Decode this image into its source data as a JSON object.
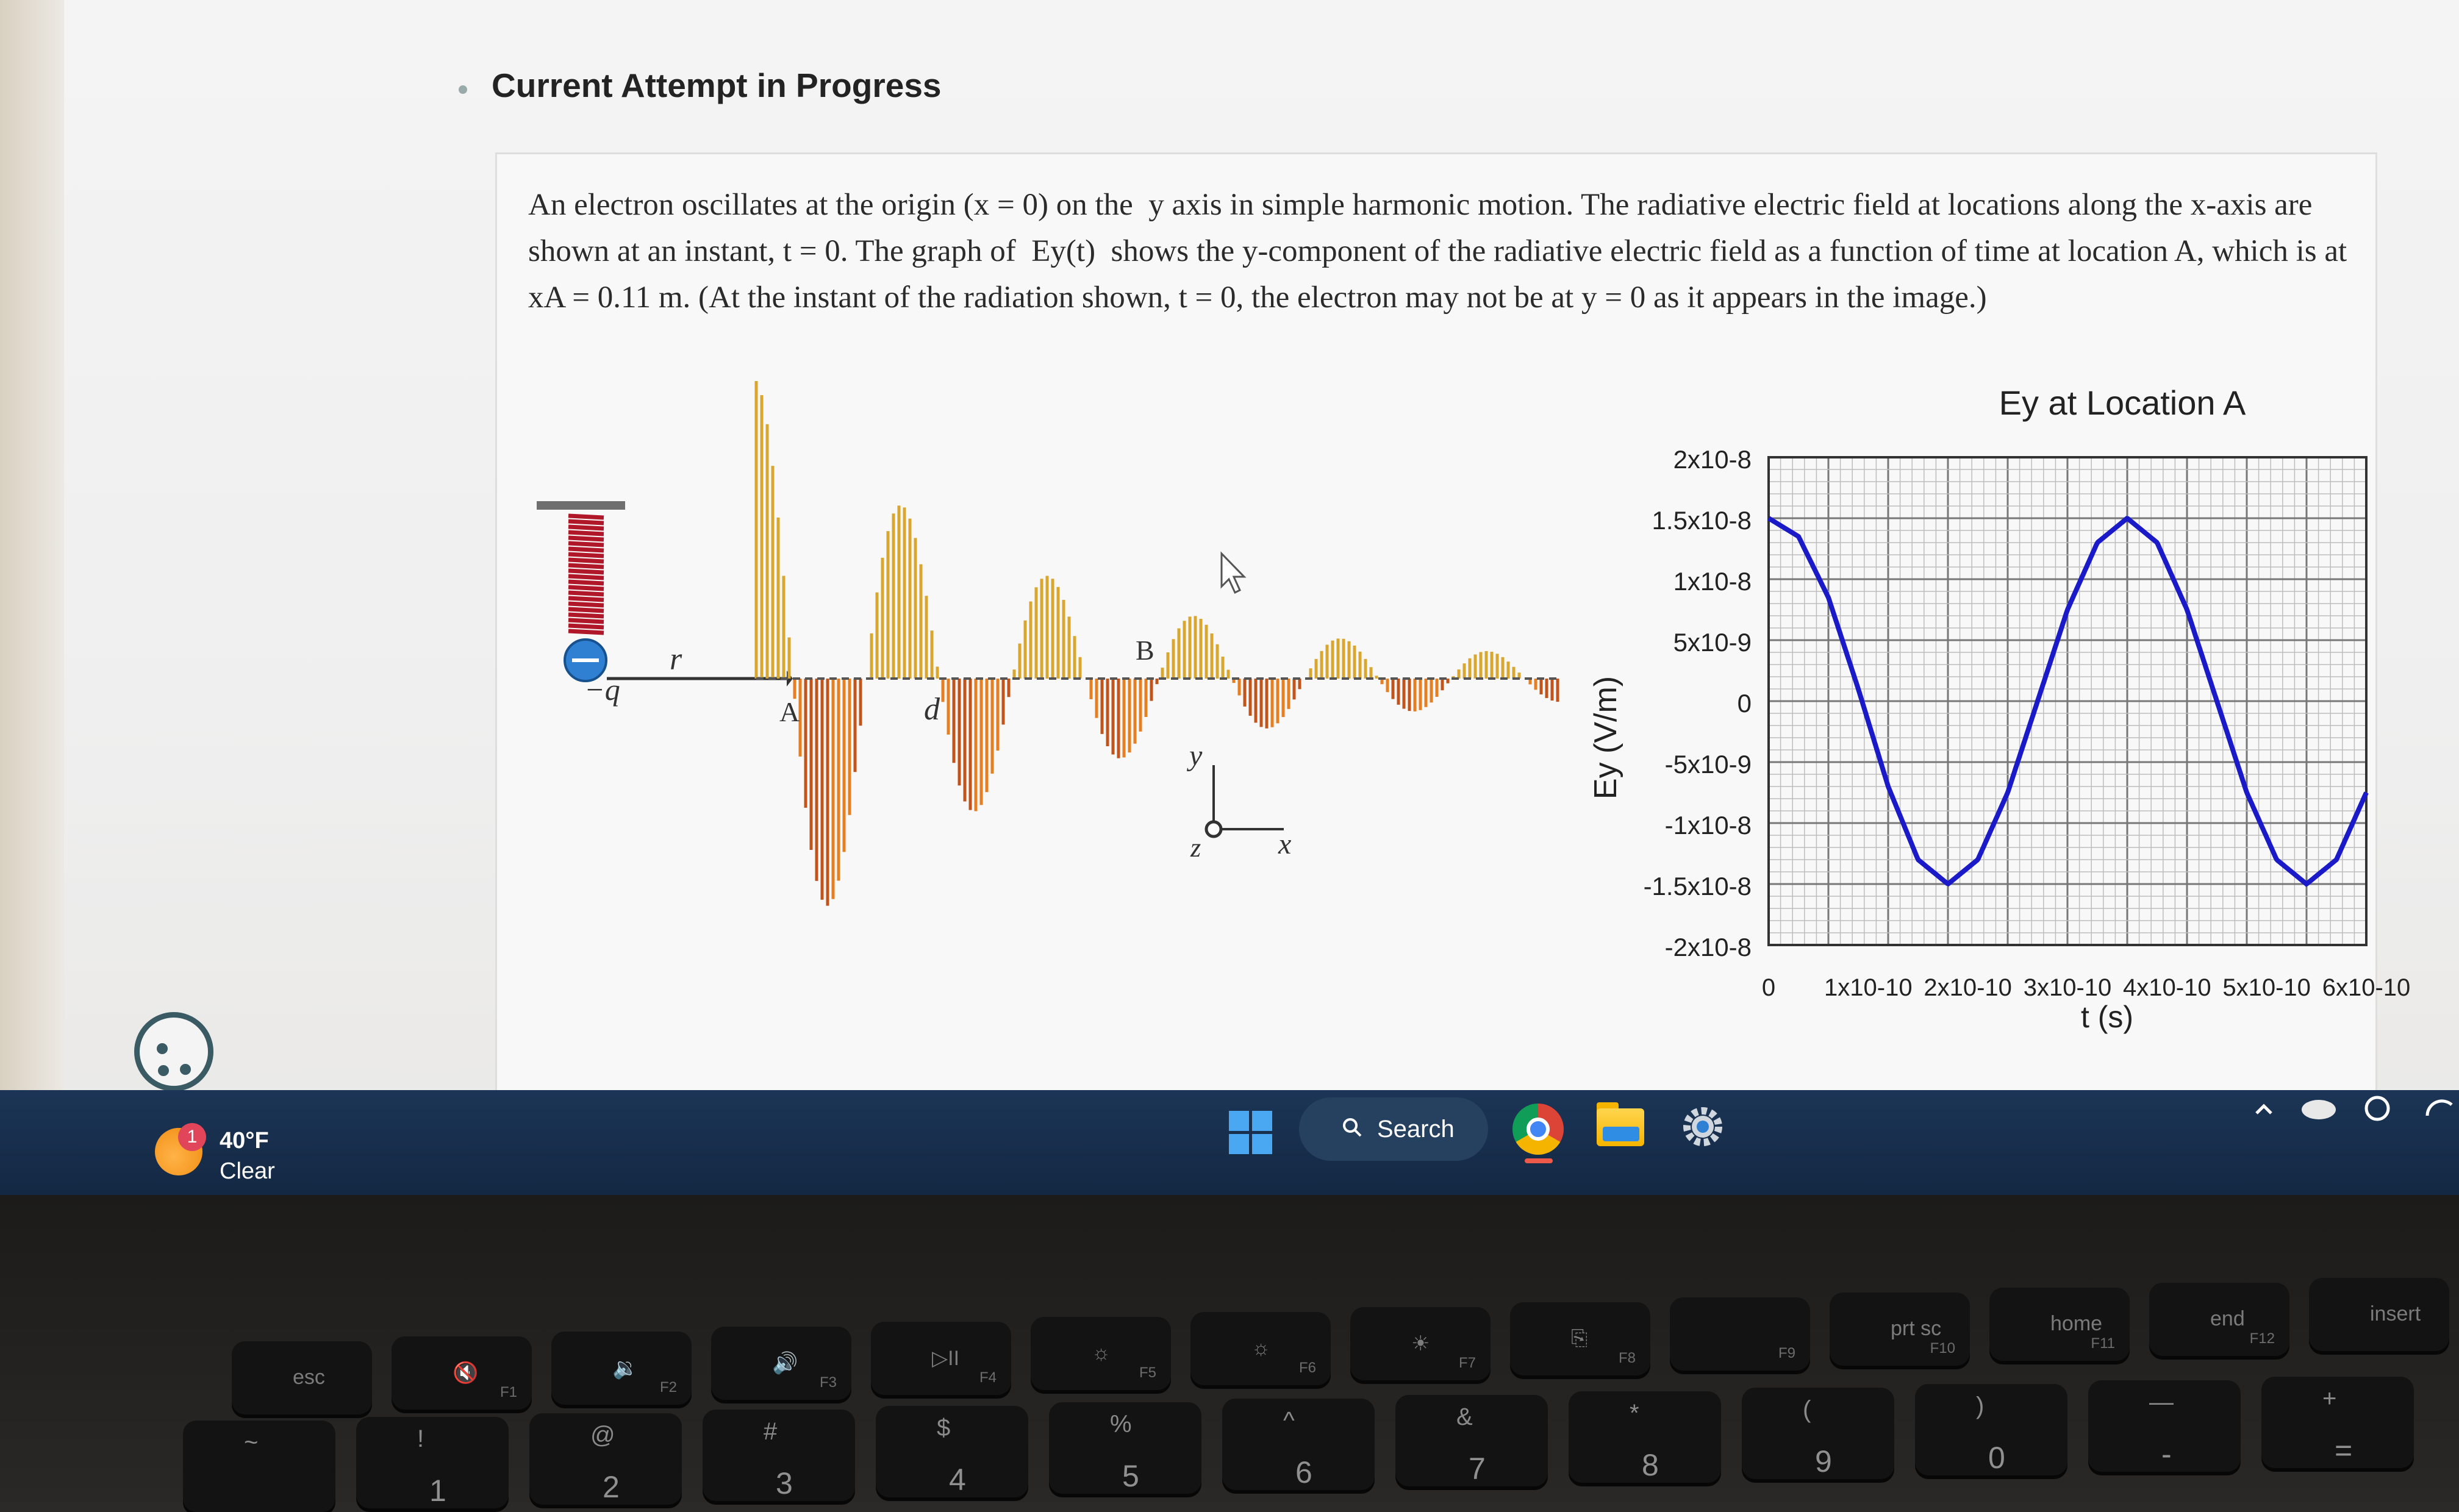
{
  "page": {
    "heading": "Current Attempt in Progress"
  },
  "question": {
    "text": "An electron oscillates at the origin (x = 0) on the  y axis in simple harmonic motion. The radiative electric field at locations along the x-axis are shown at an instant, t = 0. The graph of  Ey(t)  shows the y-component of the radiative electric field as a function of time at location A, which is at xA = 0.11 m. (At the instant of the radiation shown, t = 0, the electron may not be at y = 0 as it appears in the image.)"
  },
  "diagram": {
    "charge_label": "−q",
    "r_label": "r⃗",
    "point_a": "A",
    "point_b": "B",
    "distance_label": "d",
    "axis_y": "y",
    "axis_x": "x",
    "axis_z": "z"
  },
  "chart_data": {
    "type": "line",
    "title": "Ey at Location A",
    "xlabel": "t (s)",
    "ylabel": "Ey (V/m)",
    "x_ticks": [
      "0",
      "1x10-10",
      "2x10-10",
      "3x10-10",
      "4x10-10",
      "5x10-10",
      "6x10-10"
    ],
    "y_ticks": [
      "2x10-8",
      "1.5x10-8",
      "1x10-8",
      "5x10-9",
      "0",
      "-5x10-9",
      "-1x10-8",
      "-1.5x10-8",
      "-2x10-8"
    ],
    "xlim": [
      0,
      6e-10
    ],
    "ylim": [
      -2e-08,
      2e-08
    ],
    "grid": true,
    "series": [
      {
        "color": "#1a1ac8",
        "x": [
          0,
          3e-11,
          6e-11,
          9e-11,
          1.2e-10,
          1.5e-10,
          1.8e-10,
          2.1e-10,
          2.4e-10,
          2.7e-10,
          3e-10,
          3.3e-10,
          3.6e-10,
          3.9e-10,
          4.2e-10,
          4.5e-10,
          4.8e-10,
          5.1e-10,
          5.4e-10,
          5.7e-10,
          6e-10
        ],
        "y": [
          1.5e-08,
          1.35e-08,
          8.5e-09,
          1e-09,
          -7e-09,
          -1.3e-08,
          -1.5e-08,
          -1.3e-08,
          -7.5e-09,
          0,
          7.5e-09,
          1.3e-08,
          1.5e-08,
          1.3e-08,
          7.5e-09,
          0,
          -7.5e-09,
          -1.3e-08,
          -1.5e-08,
          -1.3e-08,
          -7.5e-09
        ]
      }
    ]
  },
  "taskbar": {
    "weather_temp": "40°F",
    "weather_desc": "Clear",
    "weather_badge": "1",
    "search_label": "Search"
  },
  "keyboard": {
    "fn_row": [
      {
        "label": "esc",
        "sub": ""
      },
      {
        "label": "🔇",
        "sub": "F1"
      },
      {
        "label": "🔉",
        "sub": "F2"
      },
      {
        "label": "🔊",
        "sub": "F3"
      },
      {
        "label": "▷II",
        "sub": "F4"
      },
      {
        "label": "☼",
        "sub": "F5"
      },
      {
        "label": "☼",
        "sub": "F6"
      },
      {
        "label": "☀",
        "sub": "F7"
      },
      {
        "label": "⎘",
        "sub": "F8"
      },
      {
        "label": "",
        "sub": "F9"
      },
      {
        "label": "prt sc",
        "sub": "F10"
      },
      {
        "label": "home",
        "sub": "F11"
      },
      {
        "label": "end",
        "sub": "F12"
      },
      {
        "label": "insert",
        "sub": ""
      }
    ],
    "num_row": [
      {
        "top": "~",
        "bot": ""
      },
      {
        "top": "!",
        "bot": "1"
      },
      {
        "top": "@",
        "bot": "2"
      },
      {
        "top": "#",
        "bot": "3"
      },
      {
        "top": "$",
        "bot": "4"
      },
      {
        "top": "%",
        "bot": "5"
      },
      {
        "top": "^",
        "bot": "6"
      },
      {
        "top": "&",
        "bot": "7"
      },
      {
        "top": "*",
        "bot": "8"
      },
      {
        "top": "(",
        "bot": "9"
      },
      {
        "top": ")",
        "bot": "0"
      },
      {
        "top": "—",
        "bot": "-"
      },
      {
        "top": "+",
        "bot": "="
      }
    ]
  }
}
